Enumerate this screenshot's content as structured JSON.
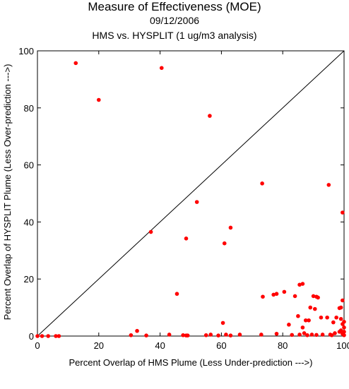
{
  "title": "Measure of Effectiveness (MOE)",
  "date": "09/12/2006",
  "subtitle": "HMS vs. HYSPLIT  (1 ug/m3 analysis)",
  "chart_data": {
    "type": "scatter",
    "title": "Measure of Effectiveness (MOE)",
    "subtitle": "HMS vs. HYSPLIT  (1 ug/m3 analysis)",
    "xlabel": "Percent Overlap of HMS Plume (Less Under-prediction --->)",
    "ylabel": "Percent Overlap of HYSPLIT Plume (Less Over-prediction --->)",
    "xlim": [
      0,
      100
    ],
    "ylim": [
      0,
      100
    ],
    "xticks": [
      0,
      20,
      40,
      60,
      80,
      100
    ],
    "yticks": [
      0,
      20,
      40,
      60,
      80,
      100
    ],
    "reference_line": "diagonal y = x",
    "grid": false,
    "legend": "none",
    "point_color": "#ff0000",
    "points": [
      [
        12.5,
        95.7
      ],
      [
        20,
        82.8
      ],
      [
        40.5,
        94
      ],
      [
        56.2,
        77.2
      ],
      [
        37,
        36.5
      ],
      [
        48.5,
        34.2
      ],
      [
        52,
        47
      ],
      [
        61,
        32.5
      ],
      [
        63,
        38
      ],
      [
        73.3,
        53.5
      ],
      [
        95,
        53
      ],
      [
        99.5,
        43.3
      ],
      [
        45.5,
        14.8
      ],
      [
        60.5,
        4.6
      ],
      [
        73.5,
        13.8
      ],
      [
        77,
        14.5
      ],
      [
        78,
        14.8
      ],
      [
        80.5,
        15.5
      ],
      [
        84,
        14
      ],
      [
        85.5,
        18
      ],
      [
        86.5,
        18.3
      ],
      [
        85,
        7
      ],
      [
        82,
        4
      ],
      [
        86.5,
        3
      ],
      [
        87.5,
        5.5
      ],
      [
        88.5,
        5.5
      ],
      [
        87,
        1
      ],
      [
        89,
        10
      ],
      [
        90,
        14
      ],
      [
        91,
        13.8
      ],
      [
        91.5,
        13.5
      ],
      [
        90.5,
        9.5
      ],
      [
        92.5,
        6.5
      ],
      [
        94.5,
        6.5
      ],
      [
        96.5,
        4.8
      ],
      [
        97.5,
        6.5
      ],
      [
        99,
        10
      ],
      [
        99.5,
        12.5
      ],
      [
        98.5,
        9.8
      ],
      [
        99,
        6
      ],
      [
        100,
        5
      ],
      [
        99.5,
        4.2
      ],
      [
        100,
        3
      ],
      [
        99,
        2
      ],
      [
        100,
        1.5
      ],
      [
        99.5,
        0.8
      ],
      [
        97,
        1
      ],
      [
        98.5,
        1.5
      ],
      [
        95.5,
        0.5
      ],
      [
        93,
        0.5
      ],
      [
        91,
        0.4
      ],
      [
        89.5,
        0.5
      ],
      [
        85.5,
        0.5
      ],
      [
        32.5,
        1.8
      ],
      [
        0,
        0
      ],
      [
        1.5,
        0
      ],
      [
        3.5,
        0
      ],
      [
        6,
        0
      ],
      [
        7,
        0
      ],
      [
        30.5,
        0.3
      ],
      [
        35.5,
        0.2
      ],
      [
        43,
        0.5
      ],
      [
        47.5,
        0.3
      ],
      [
        48.5,
        0.2
      ],
      [
        49,
        0.2
      ],
      [
        55,
        0.3
      ],
      [
        56.5,
        0.5
      ],
      [
        59,
        0.2
      ],
      [
        61.5,
        0.5
      ],
      [
        63,
        0.2
      ],
      [
        66,
        0.5
      ],
      [
        73,
        0.5
      ],
      [
        78,
        0.8
      ],
      [
        83,
        0.4
      ],
      [
        88,
        0.3
      ],
      [
        96,
        0.3
      ],
      [
        100,
        0.3
      ]
    ]
  }
}
